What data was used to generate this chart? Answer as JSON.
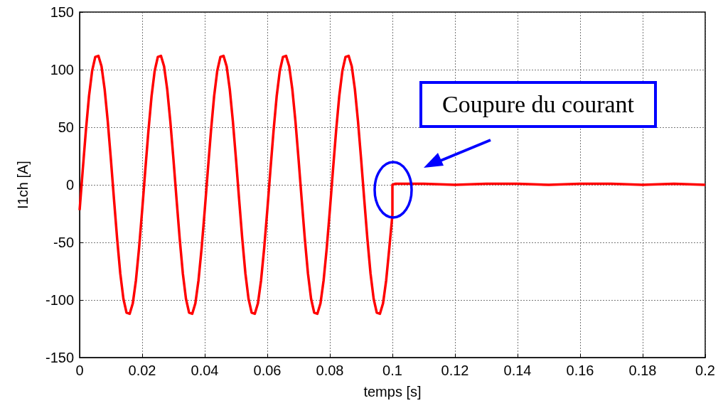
{
  "chart_data": {
    "type": "line",
    "xlabel": "temps [s]",
    "ylabel": "I1ch [A]",
    "xlim": [
      0,
      0.2
    ],
    "xticks": [
      0,
      0.02,
      0.04,
      0.06,
      0.08,
      0.1,
      0.12,
      0.14,
      0.16,
      0.18,
      0.2
    ],
    "ylim": [
      -150,
      150
    ],
    "yticks": [
      -150,
      -100,
      -50,
      0,
      50,
      100,
      150
    ],
    "grid": true,
    "marker": "none",
    "line_style": "solid",
    "annotations": [
      "Coupure du courant"
    ],
    "series": [
      {
        "color": "#ff0000",
        "x": [
          0,
          0.001,
          0.002,
          0.003,
          0.004,
          0.005,
          0.006,
          0.007,
          0.008,
          0.009,
          0.01,
          0.011,
          0.012,
          0.013,
          0.014,
          0.015,
          0.016,
          0.017,
          0.018,
          0.019,
          0.02,
          0.021,
          0.022,
          0.023,
          0.024,
          0.025,
          0.026,
          0.027,
          0.028,
          0.029,
          0.03,
          0.031,
          0.032,
          0.033,
          0.034,
          0.035,
          0.036,
          0.037,
          0.038,
          0.039,
          0.04,
          0.041,
          0.042,
          0.043,
          0.044,
          0.045,
          0.046,
          0.047,
          0.048,
          0.049,
          0.05,
          0.051,
          0.052,
          0.053,
          0.054,
          0.055,
          0.056,
          0.057,
          0.058,
          0.059,
          0.06,
          0.061,
          0.062,
          0.063,
          0.064,
          0.065,
          0.066,
          0.067,
          0.068,
          0.069,
          0.07,
          0.071,
          0.072,
          0.073,
          0.074,
          0.075,
          0.076,
          0.077,
          0.078,
          0.079,
          0.08,
          0.081,
          0.082,
          0.083,
          0.084,
          0.085,
          0.086,
          0.087,
          0.088,
          0.089,
          0.09,
          0.091,
          0.092,
          0.093,
          0.094,
          0.095,
          0.096,
          0.097,
          0.098,
          0.099,
          0.1,
          0.1,
          0.101,
          0.11,
          0.12,
          0.13,
          0.14,
          0.15,
          0.16,
          0.17,
          0.18,
          0.19,
          0.2
        ],
        "values": [
          -22,
          13,
          47,
          77,
          99,
          111,
          112,
          103,
          83,
          55,
          22,
          -13,
          -47,
          -77,
          -99,
          -111,
          -112,
          -103,
          -83,
          -55,
          -22,
          13,
          47,
          77,
          99,
          111,
          112,
          103,
          83,
          55,
          22,
          -13,
          -47,
          -77,
          -99,
          -111,
          -112,
          -103,
          -83,
          -55,
          -22,
          13,
          47,
          77,
          99,
          111,
          112,
          103,
          83,
          55,
          22,
          -13,
          -47,
          -77,
          -99,
          -111,
          -112,
          -103,
          -83,
          -55,
          -22,
          13,
          47,
          77,
          99,
          111,
          112,
          103,
          83,
          55,
          22,
          -13,
          -47,
          -77,
          -99,
          -111,
          -112,
          -103,
          -83,
          -55,
          -22,
          13,
          47,
          77,
          99,
          111,
          112,
          103,
          83,
          55,
          22,
          -13,
          -47,
          -77,
          -99,
          -111,
          -112,
          -103,
          -83,
          -55,
          -26,
          0,
          1,
          1,
          0,
          1,
          1,
          0,
          1,
          1,
          0,
          1,
          0
        ]
      }
    ]
  }
}
